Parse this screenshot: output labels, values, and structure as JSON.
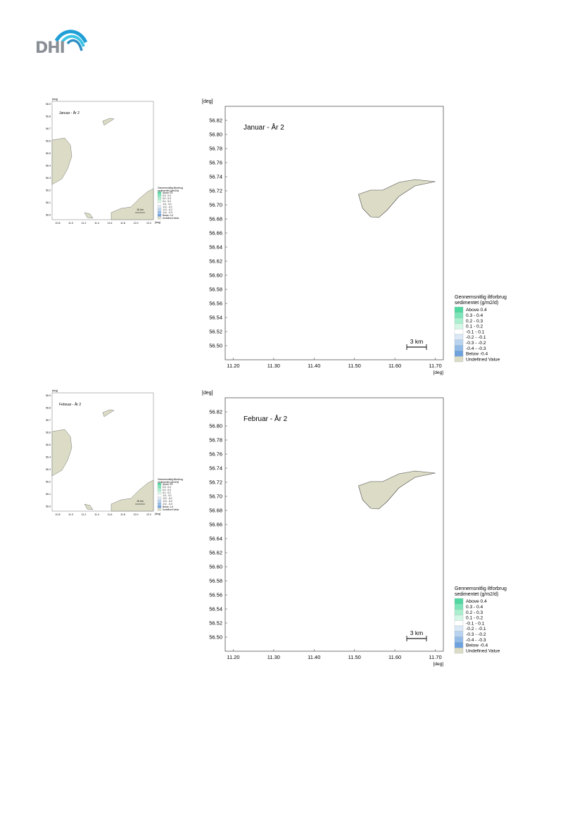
{
  "brand": {
    "name": "DHI",
    "logo_icon": "dhi-wave-logo",
    "colors": {
      "wave_top": "#1f9fd6",
      "wave_mid": "#3cc4e6",
      "wave_low": "#2e8fc5",
      "text": "#8a8f96"
    }
  },
  "panels": [
    {
      "title": "Januar - År 2",
      "thumb_title": "Januar - År 2",
      "scale_bar": "3 km",
      "thumb_scale_bar": "10 km"
    },
    {
      "title": "Februar - År 2",
      "thumb_title": "Februar - År 2",
      "scale_bar": "3 km",
      "thumb_scale_bar": "10 km"
    }
  ],
  "axes": {
    "y_unit": "[deg]",
    "x_unit": "[deg]",
    "y_ticks": [
      "56.82",
      "56.80",
      "56.78",
      "56.76",
      "56.74",
      "56.72",
      "56.70",
      "56.68",
      "56.66",
      "56.64",
      "56.62",
      "56.60",
      "56.58",
      "56.56",
      "56.54",
      "56.52",
      "56.50"
    ],
    "x_ticks": [
      "11.20",
      "11.30",
      "11.40",
      "11.50",
      "11.60",
      "11.70"
    ],
    "thumb_y_ticks": [
      "56.9",
      "56.8",
      "56.7",
      "56.6",
      "56.5",
      "56.4",
      "56.3",
      "56.2",
      "56.1",
      "56.0"
    ],
    "thumb_x_ticks": [
      "10.8",
      "11.0",
      "11.2",
      "11.4",
      "11.6",
      "11.8",
      "12.0",
      "12.2"
    ],
    "thumb_unit": "[deg]"
  },
  "legend": {
    "title_lines": [
      "Gennemsnitlig iltforbrug",
      "sedimentet (g/m2/d)"
    ],
    "items": [
      {
        "label": "Above  0.4",
        "color": "#4fd9a0"
      },
      {
        "label": "0.3 -  0.4",
        "color": "#7de6b8"
      },
      {
        "label": "0.2 -  0.3",
        "color": "#a9f0cf"
      },
      {
        "label": "0.1 -  0.2",
        "color": "#d4f7e6"
      },
      {
        "label": "-0.1 -  0.1",
        "color": "#ffffff"
      },
      {
        "label": "-0.2 - -0.1",
        "color": "#dbe8f7"
      },
      {
        "label": "-0.3 - -0.2",
        "color": "#b8d3f0"
      },
      {
        "label": "-0.4 - -0.3",
        "color": "#93bbe8"
      },
      {
        "label": "Below -0.4",
        "color": "#6ea2df"
      },
      {
        "label": "Undefined Value",
        "color": "#dcdcc6"
      }
    ]
  },
  "map_data": {
    "island_poly_deg": [
      [
        11.51,
        56.715
      ],
      [
        11.54,
        56.721
      ],
      [
        11.57,
        56.721
      ],
      [
        11.61,
        56.732
      ],
      [
        11.65,
        56.736
      ],
      [
        11.7,
        56.733
      ],
      [
        11.65,
        56.727
      ],
      [
        11.61,
        56.712
      ],
      [
        11.58,
        56.692
      ],
      [
        11.56,
        56.682
      ],
      [
        11.54,
        56.683
      ],
      [
        11.52,
        56.695
      ]
    ],
    "xlim": [
      11.18,
      11.72
    ],
    "ylim": [
      56.48,
      56.84
    ],
    "land_color": "#dcdcc6"
  }
}
